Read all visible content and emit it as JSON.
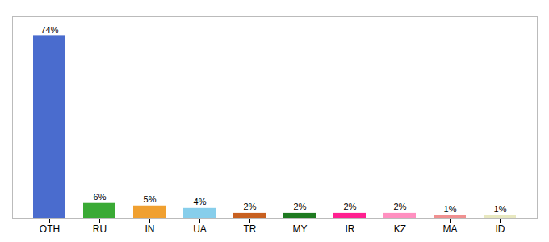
{
  "chart_data": {
    "type": "bar",
    "categories": [
      "OTH",
      "RU",
      "IN",
      "UA",
      "TR",
      "MY",
      "IR",
      "KZ",
      "MA",
      "ID"
    ],
    "values": [
      74,
      6,
      5,
      4,
      2,
      2,
      2,
      2,
      1,
      1
    ],
    "value_labels": [
      "74%",
      "6%",
      "5%",
      "4%",
      "2%",
      "2%",
      "2%",
      "2%",
      "1%",
      "1%"
    ],
    "colors": [
      "#4a6cce",
      "#3aaa35",
      "#f0a030",
      "#87ceeb",
      "#c86020",
      "#1e7a20",
      "#ff2090",
      "#ff90c0",
      "#f09090",
      "#e8e8c0"
    ],
    "ylim": [
      0,
      82
    ],
    "data_labels": true,
    "tick_labels": "x"
  }
}
